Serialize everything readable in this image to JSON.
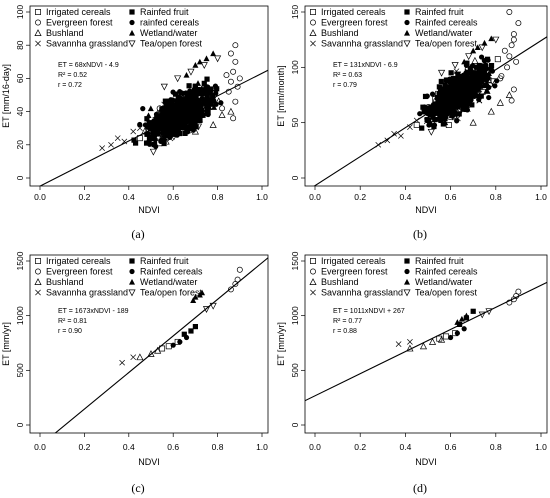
{
  "chart_data": [
    {
      "type": "scatter",
      "caption": "(a)",
      "xlabel": "NDVI",
      "ylabel": "ET [mm/16-day]",
      "xlim": [
        0.0,
        1.0
      ],
      "ylim": [
        0,
        100
      ],
      "xticks": [
        "0.0",
        "0.2",
        "0.4",
        "0.6",
        "0.8",
        "1.0"
      ],
      "yticks": [
        "0",
        "20",
        "40",
        "60",
        "80",
        "100"
      ],
      "legend": [
        "Irrigated cereals",
        "Rainfed fruit",
        "Evergreen forest",
        "rainfed cereals",
        "Bushland",
        "Wetland/water",
        "Savannha grassland",
        "Tea/open forest"
      ],
      "equation": [
        "ET = 68xNDVI - 4.9",
        "R² = 0.52",
        "r  = 0.72"
      ],
      "fit": {
        "slope": 68,
        "intercept": -4.9
      },
      "series": [
        {
          "name": "Irrigated cereals",
          "marker": "square-open",
          "x": [
            0.45,
            0.52,
            0.58,
            0.63,
            0.68,
            0.72
          ],
          "y": [
            24,
            32,
            36,
            41,
            44,
            48
          ]
        },
        {
          "name": "Rainfed fruit",
          "marker": "square-filled",
          "x": [
            0.6,
            0.64,
            0.68,
            0.7,
            0.74
          ],
          "y": [
            38,
            45,
            50,
            55,
            57
          ]
        },
        {
          "name": "Evergreen forest",
          "marker": "circle-open",
          "x": [
            0.82,
            0.85,
            0.86,
            0.87,
            0.88,
            0.88,
            0.89,
            0.9,
            0.87,
            0.86,
            0.84,
            0.88
          ],
          "y": [
            42,
            52,
            58,
            64,
            46,
            70,
            55,
            60,
            36,
            75,
            62,
            80
          ]
        },
        {
          "name": "rainfed cereals",
          "marker": "circle-filled",
          "x": [
            0.5,
            0.55,
            0.6,
            0.65,
            0.7,
            0.75
          ],
          "y": [
            30,
            35,
            40,
            45,
            50,
            55
          ]
        },
        {
          "name": "Bushland",
          "marker": "triangle-open",
          "x": [
            0.62,
            0.7,
            0.78,
            0.82,
            0.86
          ],
          "y": [
            30,
            28,
            32,
            38,
            40
          ]
        },
        {
          "name": "Wetland/water",
          "marker": "triangle-filled",
          "x": [
            0.66,
            0.7,
            0.72,
            0.75,
            0.78
          ],
          "y": [
            62,
            68,
            70,
            72,
            75
          ]
        },
        {
          "name": "Savannha grassland",
          "marker": "cross",
          "x": [
            0.28,
            0.32,
            0.35,
            0.38,
            0.42,
            0.45
          ],
          "y": [
            18,
            20,
            24,
            22,
            28,
            30
          ]
        },
        {
          "name": "Tea/open forest",
          "marker": "triangle-down-open",
          "x": [
            0.56,
            0.62,
            0.68,
            0.74,
            0.8
          ],
          "y": [
            55,
            60,
            64,
            68,
            72
          ]
        }
      ]
    },
    {
      "type": "scatter",
      "caption": "(b)",
      "xlabel": "NDVI",
      "ylabel": "ET [mm/month]",
      "xlim": [
        0.0,
        1.0
      ],
      "ylim": [
        0,
        150
      ],
      "xticks": [
        "0.0",
        "0.2",
        "0.4",
        "0.6",
        "0.8",
        "1.0"
      ],
      "yticks": [
        "0",
        "50",
        "100",
        "150"
      ],
      "legend": [
        "Irrigated cereals",
        "Rainfed fruit",
        "Evergreen forest",
        "Rainfed cereals",
        "Bushland",
        "Wetland/water",
        "Savannha grassland",
        "Tea/open forest"
      ],
      "equation": [
        "ET = 131xNDVI - 6.9",
        "R² = 0.63",
        "r  = 0.79"
      ],
      "fit": {
        "slope": 131,
        "intercept": -6.9
      },
      "series": [
        {
          "name": "Irrigated cereals",
          "marker": "square-open",
          "x": [
            0.45,
            0.52,
            0.58,
            0.63,
            0.68,
            0.72
          ],
          "y": [
            48,
            60,
            70,
            78,
            85,
            92
          ]
        },
        {
          "name": "Rainfed fruit",
          "marker": "square-filled",
          "x": [
            0.6,
            0.64,
            0.68,
            0.7,
            0.74
          ],
          "y": [
            72,
            80,
            88,
            95,
            100
          ]
        },
        {
          "name": "Evergreen forest",
          "marker": "circle-open",
          "x": [
            0.82,
            0.85,
            0.86,
            0.87,
            0.88,
            0.88,
            0.89,
            0.9,
            0.87,
            0.86,
            0.84,
            0.88
          ],
          "y": [
            90,
            100,
            110,
            120,
            80,
            130,
            105,
            140,
            70,
            150,
            115,
            125
          ]
        },
        {
          "name": "Rainfed cereals",
          "marker": "circle-filled",
          "x": [
            0.5,
            0.55,
            0.6,
            0.65,
            0.7,
            0.75
          ],
          "y": [
            58,
            66,
            75,
            84,
            92,
            100
          ]
        },
        {
          "name": "Bushland",
          "marker": "triangle-open",
          "x": [
            0.62,
            0.7,
            0.78,
            0.82,
            0.86
          ],
          "y": [
            55,
            50,
            60,
            68,
            75
          ]
        },
        {
          "name": "Wetland/water",
          "marker": "triangle-filled",
          "x": [
            0.66,
            0.7,
            0.72,
            0.75,
            0.78
          ],
          "y": [
            105,
            115,
            118,
            122,
            126
          ]
        },
        {
          "name": "Savannha grassland",
          "marker": "cross",
          "x": [
            0.28,
            0.32,
            0.35,
            0.38,
            0.42,
            0.45
          ],
          "y": [
            30,
            34,
            40,
            38,
            46,
            52
          ]
        },
        {
          "name": "Tea/open forest",
          "marker": "triangle-down-open",
          "x": [
            0.56,
            0.62,
            0.68,
            0.74,
            0.8
          ],
          "y": [
            95,
            102,
            110,
            118,
            125
          ]
        }
      ]
    },
    {
      "type": "scatter",
      "caption": "(c)",
      "xlabel": "NDVI",
      "ylabel": "ET [mm/yr]",
      "xlim": [
        0.0,
        1.0
      ],
      "ylim": [
        0,
        1500
      ],
      "xticks": [
        "0.0",
        "0.2",
        "0.4",
        "0.6",
        "0.8",
        "1.0"
      ],
      "yticks": [
        "0",
        "500",
        "1000",
        "1500"
      ],
      "legend": [
        "Irrigated cereals",
        "Rainfed fruit",
        "Evergreen forest",
        "Rainfed cereals",
        "Bushland",
        "Wetland/water",
        "Savannha grassland",
        "Tea/open forest"
      ],
      "equation": [
        "ET = 1673xNDVI - 189",
        "R² = 0.81",
        "r  = 0.90"
      ],
      "fit": {
        "slope": 1673,
        "intercept": -189
      },
      "series": [
        {
          "name": "Irrigated cereals",
          "marker": "square-open",
          "x": [
            0.55,
            0.58,
            0.62
          ],
          "y": [
            700,
            720,
            760
          ]
        },
        {
          "name": "Rainfed fruit",
          "marker": "square-filled",
          "x": [
            0.65,
            0.68,
            0.7
          ],
          "y": [
            830,
            860,
            900
          ]
        },
        {
          "name": "Evergreen forest",
          "marker": "circle-open",
          "x": [
            0.86,
            0.88,
            0.89,
            0.9
          ],
          "y": [
            1240,
            1290,
            1330,
            1420
          ]
        },
        {
          "name": "Rainfed cereals",
          "marker": "circle-filled",
          "x": [
            0.6,
            0.63,
            0.66
          ],
          "y": [
            730,
            760,
            800
          ]
        },
        {
          "name": "Bushland",
          "marker": "triangle-open",
          "x": [
            0.45,
            0.5,
            0.53
          ],
          "y": [
            620,
            650,
            680
          ]
        },
        {
          "name": "Wetland/water",
          "marker": "triangle-filled",
          "x": [
            0.69,
            0.7,
            0.72,
            0.73
          ],
          "y": [
            1140,
            1170,
            1190,
            1210
          ]
        },
        {
          "name": "Savannha grassland",
          "marker": "cross",
          "x": [
            0.37,
            0.42
          ],
          "y": [
            570,
            620
          ]
        },
        {
          "name": "Tea/open forest",
          "marker": "triangle-down-open",
          "x": [
            0.75,
            0.78
          ],
          "y": [
            1060,
            1090
          ]
        }
      ]
    },
    {
      "type": "scatter",
      "caption": "(d)",
      "xlabel": "NDVI",
      "ylabel": "ET [mm/yr]",
      "xlim": [
        0.0,
        1.0
      ],
      "ylim": [
        0,
        1500
      ],
      "xticks": [
        "0.0",
        "0.2",
        "0.4",
        "0.6",
        "0.8",
        "1.0"
      ],
      "yticks": [
        "0",
        "500",
        "1000",
        "1500"
      ],
      "legend": [
        "Irrigated cereals",
        "Rainfed fruit",
        "Evergreen forest",
        "Rainfed cereals",
        "Bushland",
        "Wetland/water",
        "Savannha grassland",
        "Tea/open forest"
      ],
      "equation": [
        "ET = 1011xNDVI + 267",
        "R² = 0.77",
        "r  = 0.88"
      ],
      "fit": {
        "slope": 1011,
        "intercept": 267
      },
      "series": [
        {
          "name": "Irrigated cereals",
          "marker": "square-open",
          "x": [
            0.55,
            0.58,
            0.62
          ],
          "y": [
            790,
            810,
            840
          ]
        },
        {
          "name": "Rainfed fruit",
          "marker": "square-filled",
          "x": [
            0.64,
            0.67,
            0.7
          ],
          "y": [
            920,
            980,
            1040
          ]
        },
        {
          "name": "Evergreen forest",
          "marker": "circle-open",
          "x": [
            0.86,
            0.88,
            0.89,
            0.9
          ],
          "y": [
            1120,
            1150,
            1180,
            1220
          ]
        },
        {
          "name": "Rainfed cereals",
          "marker": "circle-filled",
          "x": [
            0.6,
            0.63,
            0.66
          ],
          "y": [
            800,
            840,
            880
          ]
        },
        {
          "name": "Bushland",
          "marker": "triangle-open",
          "x": [
            0.42,
            0.48,
            0.52,
            0.56
          ],
          "y": [
            700,
            720,
            760,
            780
          ]
        },
        {
          "name": "Wetland/water",
          "marker": "triangle-filled",
          "x": [
            0.63,
            0.65,
            0.67
          ],
          "y": [
            940,
            970,
            1000
          ]
        },
        {
          "name": "Savannha grassland",
          "marker": "cross",
          "x": [
            0.37,
            0.42
          ],
          "y": [
            740,
            760
          ]
        },
        {
          "name": "Tea/open forest",
          "marker": "triangle-down-open",
          "x": [
            0.74,
            0.77
          ],
          "y": [
            1010,
            1040
          ]
        }
      ]
    }
  ]
}
